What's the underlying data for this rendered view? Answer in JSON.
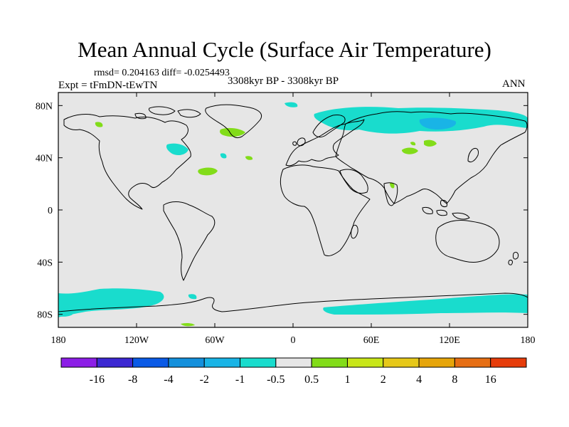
{
  "chart_data": {
    "type": "heatmap",
    "title": "Mean Annual Cycle (Surface Air Temperature)",
    "stats": "rmsd= 0.204163 diff= -0.0254493",
    "experiment": "Expt = tFmDN-tEwTN",
    "period": "3308kyr BP - 3308kyr BP",
    "season": "ANN",
    "x_ticks": [
      {
        "value": -180,
        "label": "180"
      },
      {
        "value": -120,
        "label": "120W"
      },
      {
        "value": -60,
        "label": "60W"
      },
      {
        "value": 0,
        "label": "0"
      },
      {
        "value": 60,
        "label": "60E"
      },
      {
        "value": 120,
        "label": "120E"
      },
      {
        "value": 180,
        "label": "180"
      }
    ],
    "y_ticks": [
      {
        "value": 80,
        "label": "80N"
      },
      {
        "value": 40,
        "label": "40N"
      },
      {
        "value": 0,
        "label": "0"
      },
      {
        "value": -40,
        "label": "40S"
      },
      {
        "value": -80,
        "label": "80S"
      }
    ],
    "xlim": [
      -180,
      180
    ],
    "ylim": [
      -90,
      90
    ],
    "colorbar": {
      "labels": [
        "-16",
        "-8",
        "-4",
        "-2",
        "-1",
        "-0.5",
        "0.5",
        "1",
        "2",
        "4",
        "8",
        "16"
      ],
      "colors": [
        "#8c1ee6",
        "#3c28d2",
        "#0a5ae6",
        "#1490dc",
        "#19b4e6",
        "#19dccd",
        "#e6e6e6",
        "#82dc19",
        "#c8e619",
        "#e6c819",
        "#e6a50a",
        "#e66e14",
        "#e63c0a"
      ]
    },
    "background_color": "#e6e6e6",
    "anomaly_regions": [
      {
        "name": "arctic-siberia",
        "level": "-0.5 to -1",
        "color": "#19dccd",
        "lon_range": [
          35,
          180
        ],
        "lat_range": [
          60,
          82
        ]
      },
      {
        "name": "arctic-siberia-core",
        "level": "-1 to -2",
        "color": "#19b4e6",
        "lon_range": [
          95,
          140
        ],
        "lat_range": [
          70,
          78
        ]
      },
      {
        "name": "southern-ocean-pacific",
        "level": "-0.5 to -1",
        "color": "#19dccd",
        "lon_range": [
          -180,
          -90
        ],
        "lat_range": [
          -85,
          -65
        ]
      },
      {
        "name": "southern-ocean-indian",
        "level": "-0.5 to -1",
        "color": "#19dccd",
        "lon_range": [
          20,
          180
        ],
        "lat_range": [
          -85,
          -65
        ]
      },
      {
        "name": "north-atlantic",
        "level": "0.5 to 1",
        "color": "#82dc19",
        "lon_range": [
          -45,
          -30
        ],
        "lat_range": [
          35,
          65
        ]
      },
      {
        "name": "central-asia",
        "level": "0.5 to 1",
        "color": "#82dc19",
        "lon_range": [
          88,
          108
        ],
        "lat_range": [
          45,
          52
        ]
      }
    ]
  }
}
